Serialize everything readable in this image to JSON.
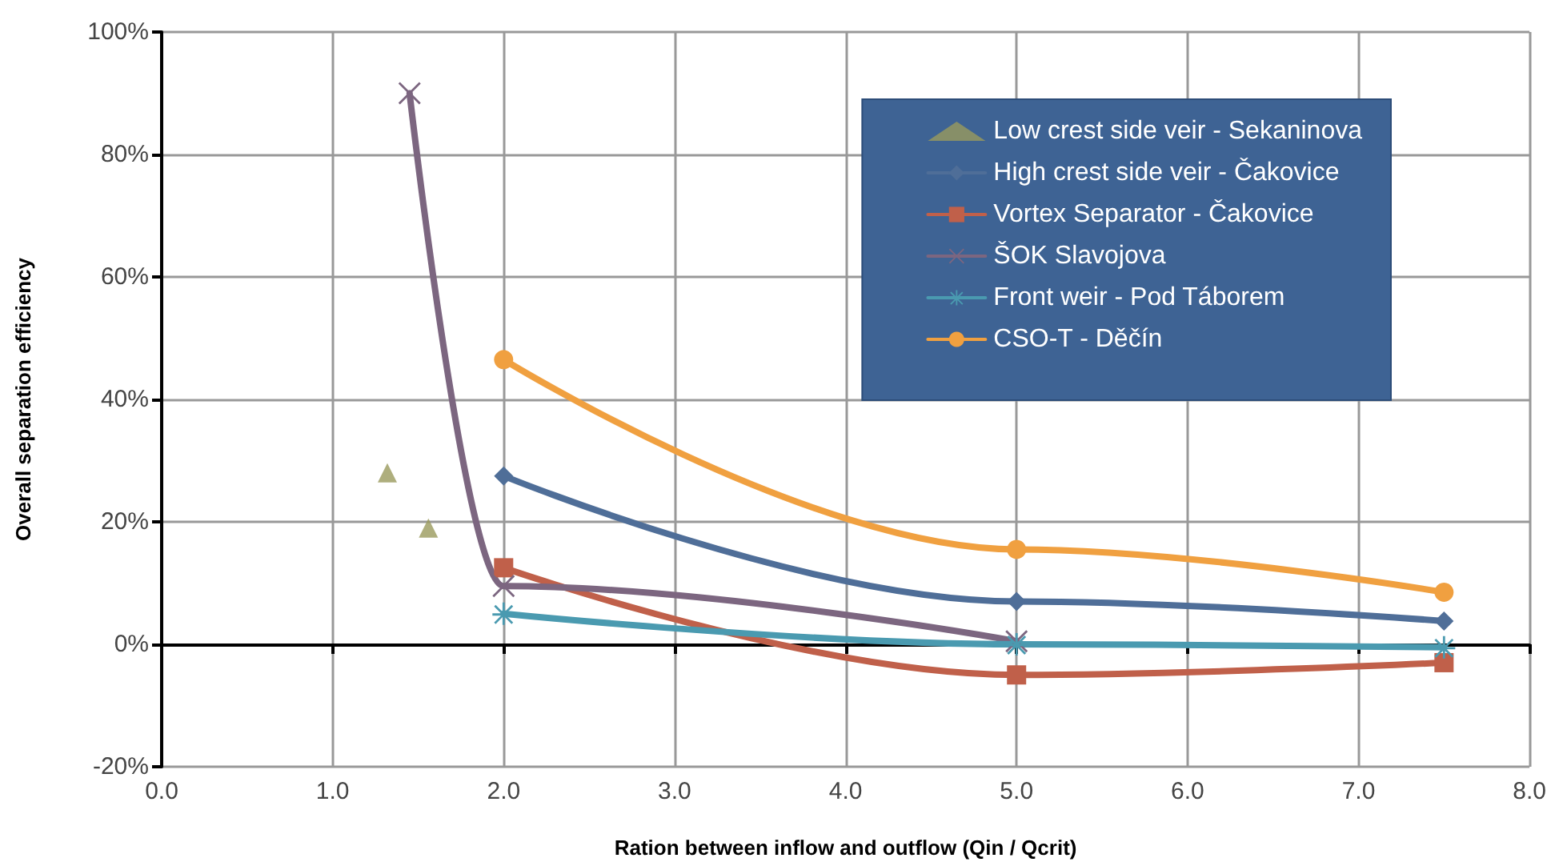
{
  "chart_data": {
    "type": "line",
    "xlabel": "Ration between inflow and outflow (Qin / Qcrit)",
    "ylabel": "Overall separation efficiency",
    "xlim": [
      0,
      8
    ],
    "xticks": [
      {
        "value": 0,
        "label": "0.0"
      },
      {
        "value": 1,
        "label": "1.0"
      },
      {
        "value": 2,
        "label": "2.0"
      },
      {
        "value": 3,
        "label": "3.0"
      },
      {
        "value": 4,
        "label": "4.0"
      },
      {
        "value": 5,
        "label": "5.0"
      },
      {
        "value": 6,
        "label": "6.0"
      },
      {
        "value": 7,
        "label": "7.0"
      },
      {
        "value": 8,
        "label": "8.0"
      }
    ],
    "ylim": [
      -20,
      100
    ],
    "yticks": [
      {
        "value": -20,
        "label": "-20%"
      },
      {
        "value": 0,
        "label": "0%"
      },
      {
        "value": 20,
        "label": "20%"
      },
      {
        "value": 40,
        "label": "40%"
      },
      {
        "value": 60,
        "label": "60%"
      },
      {
        "value": 80,
        "label": "80%"
      },
      {
        "value": 100,
        "label": "100%"
      }
    ],
    "grid": true,
    "legend": "top right",
    "series": [
      {
        "name": "Low crest side veir - Sekaninova",
        "type": "scatter",
        "marker": "triangle",
        "color": "#9a9a5c",
        "x": [
          1.32,
          1.56
        ],
        "values": [
          28,
          19
        ]
      },
      {
        "name": "High crest side veir - Čakovice",
        "marker": "diamond",
        "color": "#4f6e98",
        "x": [
          2.0,
          5.0,
          7.5
        ],
        "values": [
          27.5,
          7,
          3.8
        ]
      },
      {
        "name": "Vortex Separator - Čakovice",
        "marker": "square",
        "color": "#c0604a",
        "x": [
          2.0,
          5.0,
          7.5
        ],
        "values": [
          12.5,
          -5,
          -3
        ]
      },
      {
        "name": "ŠOK Slavojova",
        "marker": "cross",
        "color": "#7c6680",
        "x": [
          1.45,
          2.0,
          5.0
        ],
        "values": [
          90,
          9.5,
          0.5
        ]
      },
      {
        "name": "Front weir - Pod Táborem",
        "marker": "star",
        "color": "#4a9ab0",
        "x": [
          2.0,
          5.0,
          7.5
        ],
        "values": [
          5,
          0,
          -0.5
        ]
      },
      {
        "name": "CSO-T - Děčín",
        "marker": "circle",
        "color": "#f0a040",
        "x": [
          2.0,
          5.0,
          7.5
        ],
        "values": [
          46.5,
          15.5,
          8.5
        ]
      }
    ]
  }
}
